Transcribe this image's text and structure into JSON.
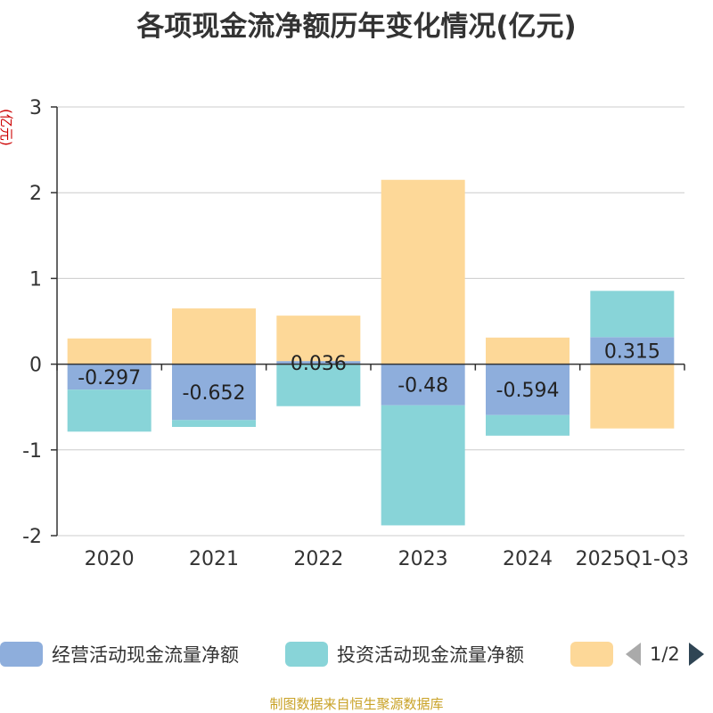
{
  "title": "各项现金流净额历年变化情况(亿元)",
  "source_note": "制图数据来自恒生聚源数据库",
  "legend_pager": "1/2",
  "colors": {
    "operating": "#8eaedc",
    "investing": "#88d4d8",
    "financing": "#fdd898",
    "axis": "#333333",
    "grid": "#cccccc",
    "unit_label": "#cc0000"
  },
  "chart_data": {
    "type": "bar",
    "stacked": true,
    "y_unit_label": "(亿元)",
    "categories": [
      "2020",
      "2021",
      "2022",
      "2023",
      "2024",
      "2025Q1-Q3"
    ],
    "ylim": [
      -2,
      3
    ],
    "yticks": [
      "3",
      "2",
      "1",
      "0",
      "-1",
      "-2"
    ],
    "grid": true,
    "legend_position": "bottom",
    "series": [
      {
        "name": "经营活动现金流量净额",
        "values": [
          -0.297,
          -0.652,
          0.036,
          -0.48,
          -0.594,
          0.315
        ],
        "labels": [
          "-0.297",
          "-0.652",
          "0.036",
          "-0.48",
          "-0.594",
          "0.315"
        ]
      },
      {
        "name": "投资活动现金流量净额",
        "values": [
          -0.49,
          -0.08,
          -0.49,
          -1.4,
          -0.24,
          0.54
        ]
      },
      {
        "name": "",
        "values": [
          0.3,
          0.65,
          0.53,
          2.15,
          0.31,
          -0.75
        ]
      }
    ]
  }
}
